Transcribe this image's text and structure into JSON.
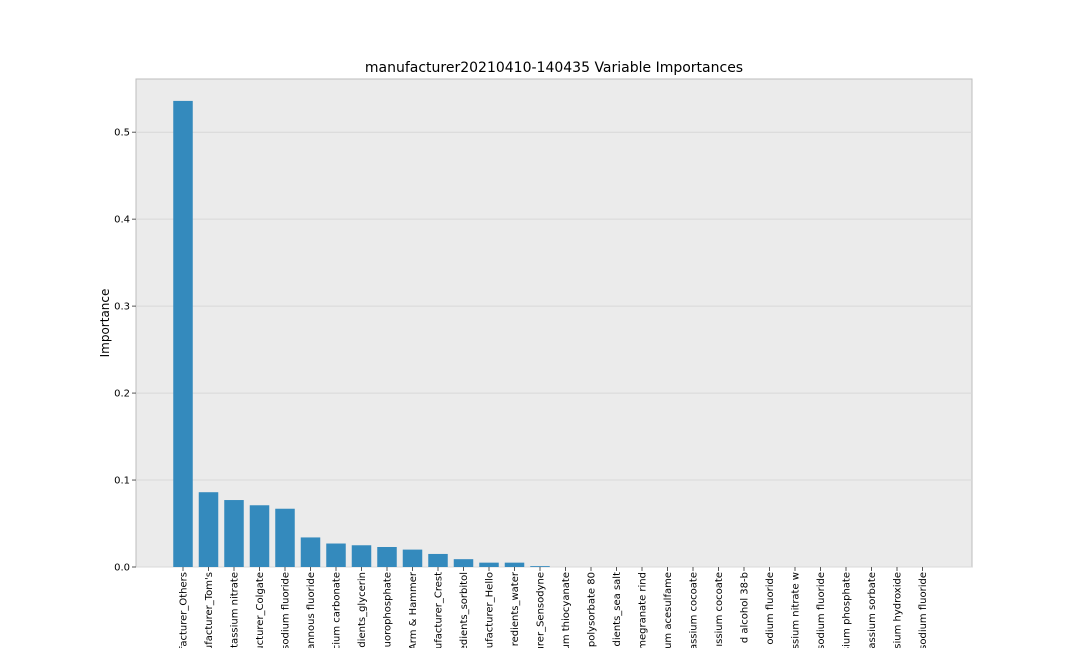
{
  "chart_data": {
    "type": "bar",
    "title": "manufacturer20210410-140435 Variable Importances",
    "xlabel": "",
    "ylabel": "Importance",
    "ylim": [
      0,
      0.5612
    ],
    "yticks": [
      0.0,
      0.1,
      0.2,
      0.3,
      0.4,
      0.5
    ],
    "ytick_labels": [
      "0.0",
      "0.1",
      "0.2",
      "0.3",
      "0.4",
      "0.5"
    ],
    "grid": true,
    "legend": "none",
    "categories": [
      "facturer_Others",
      "ufacturer_Tom's",
      "tassium nitrate",
      "ucturer_Colgate",
      "sodium fluoride",
      "annous fluoride",
      "cium carbonate",
      "dients_glycerin",
      "luorophosphate",
      "Arm & Hammer",
      "ufacturer_Crest",
      "edients_sorbitol",
      "ufacturer_Hello",
      "redients_water",
      "urer_Sensodyne",
      "um thiocyanate",
      "polysorbate 80",
      "dients_sea salt",
      "megranate rind",
      "um acesulfame",
      "assium cocoate",
      "ıssium cocoate",
      "d alcohol 38-b",
      "odium fluoride",
      "ssium nitrate w",
      "sodium fluoride",
      "sium phosphate",
      "assium sorbate",
      "sium hydroxide",
      "sodium fluoride"
    ],
    "values": [
      0.536,
      0.086,
      0.077,
      0.071,
      0.067,
      0.034,
      0.027,
      0.025,
      0.023,
      0.02,
      0.015,
      0.009,
      0.005,
      0.005,
      0.001,
      0,
      0,
      0,
      0,
      0,
      0,
      0,
      0,
      0,
      0,
      0,
      0,
      0,
      0,
      0
    ],
    "colors": {
      "bar": "#348abd",
      "plot_background": "#ebebeb",
      "plot_border": "#bcbcbc",
      "grid": "#d8d8d8"
    }
  }
}
